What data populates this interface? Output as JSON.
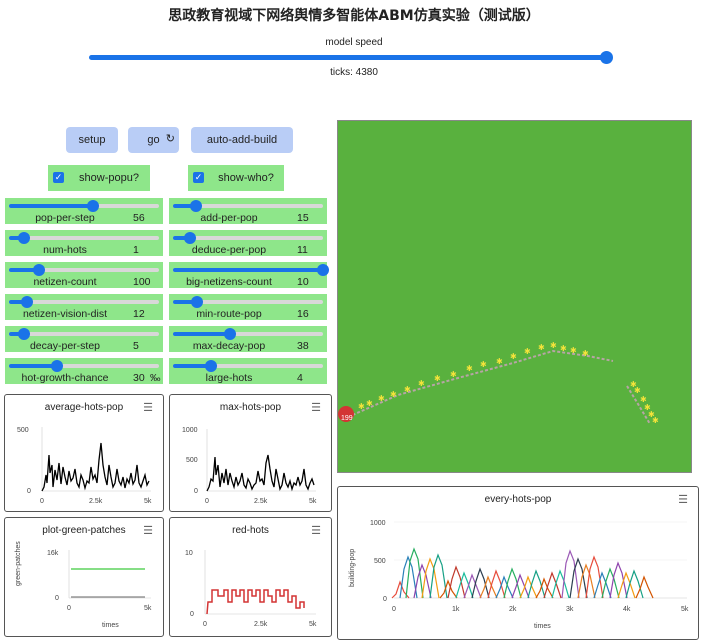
{
  "title": "思政教育视域下网络舆情多智能体ABM仿真实验（测试版）",
  "speed": {
    "label": "model speed",
    "ticks_label": "ticks: 4380"
  },
  "buttons": {
    "setup": "setup",
    "go": "go",
    "go_icon": "loop-icon",
    "auto_build": "auto-add-build"
  },
  "checkboxes": [
    {
      "label": "show-popu?",
      "checked": true
    },
    {
      "label": "show-who?",
      "checked": true
    }
  ],
  "sliders_left": [
    {
      "name": "pop-per-step",
      "value": "56",
      "level": 0.56
    },
    {
      "name": "num-hots",
      "value": "1",
      "level": 0.1
    },
    {
      "name": "netizen-count",
      "value": "100",
      "level": 0.2
    },
    {
      "name": "netizen-vision-dist",
      "value": "12",
      "level": 0.12
    },
    {
      "name": "decay-per-step",
      "value": "5",
      "level": 0.1
    },
    {
      "name": "hot-growth-chance",
      "value": "30",
      "unit": "‰",
      "level": 0.32
    }
  ],
  "sliders_right": [
    {
      "name": "add-per-pop",
      "value": "15",
      "level": 0.15
    },
    {
      "name": "deduce-per-pop",
      "value": "11",
      "level": 0.11
    },
    {
      "name": "big-netizens-count",
      "value": "10",
      "level": 1.0
    },
    {
      "name": "min-route-pop",
      "value": "16",
      "level": 0.16
    },
    {
      "name": "max-decay-pop",
      "value": "38",
      "level": 0.38
    },
    {
      "name": "large-hots",
      "value": "4",
      "level": 0.25
    }
  ],
  "plots": {
    "average_hots_pop": {
      "title": "average-hots-pop",
      "y_ticks": [
        "500",
        "0"
      ],
      "x_ticks": [
        "0",
        "2.5k",
        "5k"
      ]
    },
    "max_hots_pop": {
      "title": "max-hots-pop",
      "y_ticks": [
        "1000",
        "500",
        "0"
      ],
      "x_ticks": [
        "0",
        "2.5k",
        "5k"
      ]
    },
    "plot_green_patches": {
      "title": "plot-green-patches",
      "y_ticks": [
        "16k",
        "0"
      ],
      "x_ticks": [
        "0",
        "5k"
      ],
      "ylabel": "green-patches",
      "xlabel": "times"
    },
    "red_hots": {
      "title": "red-hots",
      "y_ticks": [
        "10",
        "0"
      ],
      "x_ticks": [
        "0",
        "2.5k",
        "5k"
      ]
    },
    "every_hots_pop": {
      "title": "every-hots-pop",
      "y_ticks": [
        "1000",
        "500",
        "0"
      ],
      "x_ticks": [
        "0",
        "1k",
        "2k",
        "3k",
        "4k",
        "5k"
      ],
      "ylabel": "building-pop",
      "xlabel": "times"
    }
  },
  "world": {
    "hot_label": "199"
  },
  "menu_icon": "hamburger-menu-icon",
  "colors": {
    "world_bg": "#59b13e",
    "button": "#b9cdf6",
    "widget": "#8ee68a",
    "accent": "#1a73e8",
    "hot": "#d33434"
  }
}
